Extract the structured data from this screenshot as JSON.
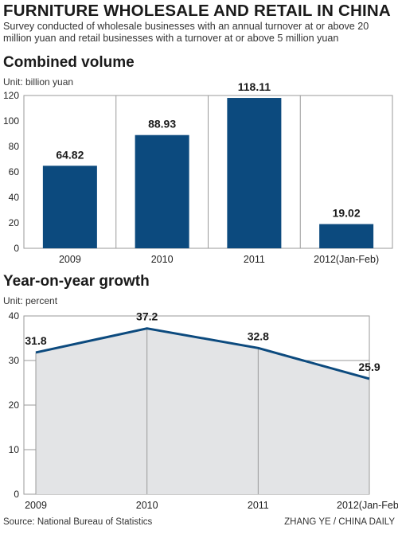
{
  "header": {
    "title": "FURNITURE WHOLESALE AND RETAIL IN CHINA",
    "subtitle": "Survey conducted of wholesale businesses with an annual turnover at or above 20 million yuan and retail businesses with a turnover at or above 5 million yuan"
  },
  "colors": {
    "bar": "#0c4a7e",
    "line": "#0c4a7e",
    "area": "#e3e4e6",
    "grid": "#9a9a9a",
    "text": "#222222"
  },
  "chart_data": [
    {
      "type": "bar",
      "title": "Combined volume",
      "unit": "Unit: billion yuan",
      "categories": [
        "2009",
        "2010",
        "2011",
        "2012(Jan-Feb)"
      ],
      "values": [
        64.82,
        88.93,
        118.11,
        19.02
      ],
      "value_labels": [
        "64.82",
        "88.93",
        "118.11",
        "19.02"
      ],
      "yticks": [
        0,
        20,
        40,
        60,
        80,
        100,
        120
      ],
      "ylim": [
        0,
        120
      ],
      "grid": true
    },
    {
      "type": "area",
      "title": "Year-on-year growth",
      "unit": "Unit: percent",
      "categories": [
        "2009",
        "2010",
        "2011",
        "2012(Jan-Feb)"
      ],
      "values": [
        31.8,
        37.2,
        32.8,
        25.9
      ],
      "value_labels": [
        "31.8",
        "37.2",
        "32.8",
        "25.9"
      ],
      "yticks": [
        0,
        10,
        20,
        30,
        40
      ],
      "ylim": [
        0,
        40
      ],
      "grid": true
    }
  ],
  "footer": {
    "source": "Source: National Bureau of Statistics",
    "credit": "ZHANG YE / CHINA DAILY"
  }
}
